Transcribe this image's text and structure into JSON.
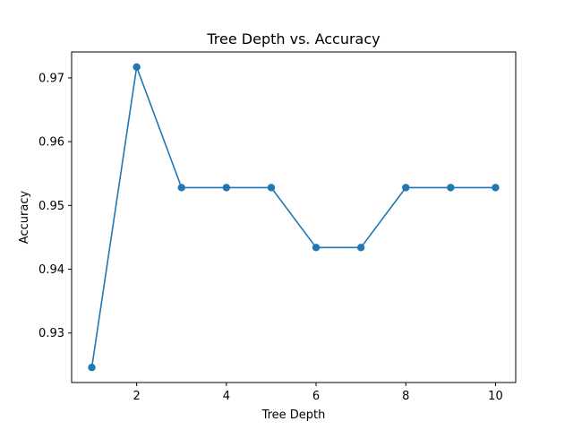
{
  "chart_data": {
    "type": "line",
    "title": "Tree Depth vs. Accuracy",
    "xlabel": "Tree Depth",
    "ylabel": "Accuracy",
    "x": [
      1,
      2,
      3,
      4,
      5,
      6,
      7,
      8,
      9,
      10
    ],
    "series": [
      {
        "values": [
          0.9246,
          0.9717,
          0.9528,
          0.9528,
          0.9528,
          0.9434,
          0.9434,
          0.9528,
          0.9528,
          0.9528
        ],
        "color": "#1f77b4",
        "marker": "circle"
      }
    ],
    "xticks": [
      2,
      4,
      6,
      8,
      10
    ],
    "xtick_labels": [
      "2",
      "4",
      "6",
      "8",
      "10"
    ],
    "yticks": [
      0.93,
      0.94,
      0.95,
      0.96,
      0.97
    ],
    "ytick_labels": [
      "0.93",
      "0.94",
      "0.95",
      "0.96",
      "0.97"
    ],
    "xlim": [
      0.55,
      10.45
    ],
    "ylim": [
      0.92224,
      0.97406
    ],
    "grid": false,
    "legend": false
  }
}
